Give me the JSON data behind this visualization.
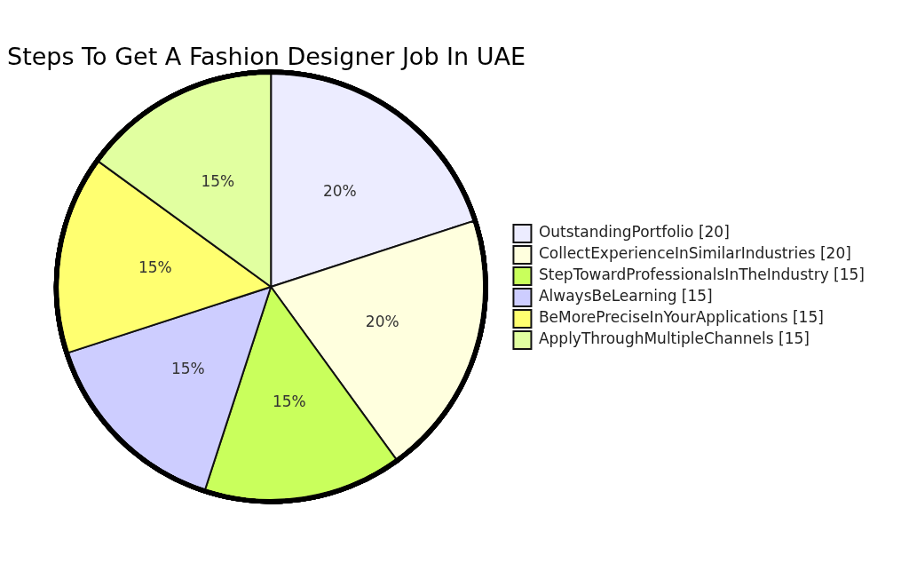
{
  "chart_data": {
    "type": "pie",
    "title": "Steps To Get A Fashion Designer Job In UAE",
    "categories": [
      "OutstandingPortfolio [20]",
      "CollectExperienceInSimilarIndustries [20]",
      "StepTowardProfessionalsInTheIndustry [15]",
      "AlwaysBeLearning [15]",
      "BeMorePreciseInYourApplications [15]",
      "ApplyThroughMultipleChannels [15]"
    ],
    "values": [
      20,
      20,
      15,
      15,
      15,
      15
    ],
    "colors": [
      "#ececff",
      "#ffffde",
      "#c9ff5c",
      "#cdcdff",
      "#ffff70",
      "#e1ffa0"
    ],
    "value_labels": [
      "20%",
      "20%",
      "15%",
      "15%",
      "15%",
      "15%"
    ],
    "legend": "right"
  }
}
